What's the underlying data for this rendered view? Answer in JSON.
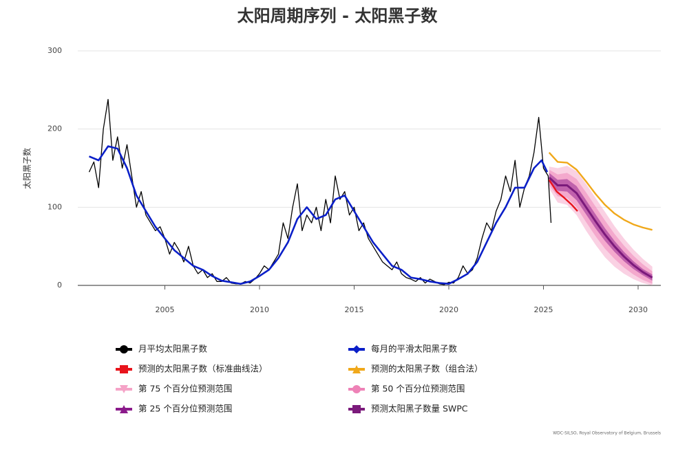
{
  "chart_data": {
    "type": "line",
    "title": "太阳周期序列 - 太阳黑子数",
    "y_label": "太阳黑子数",
    "credit": "WDC-SILSO, Royal Observatory of Belgium, Brussels",
    "xlim": [
      2000.4,
      2031.2
    ],
    "xticks": [
      2005,
      2010,
      2015,
      2020,
      2025,
      2030
    ],
    "ylim": [
      0,
      300
    ],
    "yticks": [
      0,
      100,
      200,
      300
    ],
    "grid": true,
    "series": [
      {
        "name": "月平均太阳黑子数",
        "color": "#000000",
        "kind": "line",
        "width": 1.3,
        "marker": "circle",
        "x": [
          2001.0,
          2001.25,
          2001.5,
          2001.75,
          2002.0,
          2002.25,
          2002.5,
          2002.75,
          2003.0,
          2003.25,
          2003.5,
          2003.75,
          2004.0,
          2004.25,
          2004.5,
          2004.75,
          2005.0,
          2005.25,
          2005.5,
          2005.75,
          2006.0,
          2006.25,
          2006.5,
          2006.75,
          2007.0,
          2007.25,
          2007.5,
          2007.75,
          2008.0,
          2008.25,
          2008.5,
          2008.75,
          2009.0,
          2009.25,
          2009.5,
          2009.75,
          2010.0,
          2010.25,
          2010.5,
          2010.75,
          2011.0,
          2011.25,
          2011.5,
          2011.75,
          2012.0,
          2012.25,
          2012.5,
          2012.75,
          2013.0,
          2013.25,
          2013.5,
          2013.75,
          2014.0,
          2014.25,
          2014.5,
          2014.75,
          2015.0,
          2015.25,
          2015.5,
          2015.75,
          2016.0,
          2016.25,
          2016.5,
          2016.75,
          2017.0,
          2017.25,
          2017.5,
          2017.75,
          2018.0,
          2018.25,
          2018.5,
          2018.75,
          2019.0,
          2019.25,
          2019.5,
          2019.75,
          2020.0,
          2020.25,
          2020.5,
          2020.75,
          2021.0,
          2021.25,
          2021.5,
          2021.75,
          2022.0,
          2022.25,
          2022.5,
          2022.75,
          2023.0,
          2023.25,
          2023.5,
          2023.75,
          2024.0,
          2024.25,
          2024.5,
          2024.75,
          2025.0,
          2025.25,
          2025.4
        ],
        "values": [
          145,
          158,
          125,
          200,
          238,
          160,
          190,
          150,
          180,
          140,
          100,
          120,
          90,
          80,
          70,
          75,
          60,
          40,
          55,
          45,
          30,
          50,
          25,
          15,
          20,
          10,
          15,
          5,
          5,
          10,
          3,
          2,
          2,
          5,
          3,
          8,
          15,
          25,
          20,
          30,
          40,
          80,
          60,
          100,
          130,
          70,
          90,
          80,
          100,
          70,
          110,
          80,
          140,
          110,
          120,
          90,
          100,
          70,
          80,
          60,
          50,
          40,
          30,
          25,
          20,
          30,
          15,
          10,
          8,
          5,
          10,
          3,
          8,
          5,
          2,
          1,
          4,
          3,
          10,
          25,
          15,
          20,
          35,
          60,
          80,
          70,
          95,
          110,
          140,
          120,
          160,
          100,
          125,
          140,
          170,
          215,
          150,
          140,
          80
        ]
      },
      {
        "name": "每月的平滑太阳黑子数",
        "color": "#0a1fc8",
        "kind": "line",
        "width": 2.6,
        "marker": "diamond",
        "x": [
          2001.0,
          2001.5,
          2002.0,
          2002.5,
          2003.0,
          2003.5,
          2004.0,
          2004.5,
          2005.0,
          2005.5,
          2006.0,
          2006.5,
          2007.0,
          2007.5,
          2008.0,
          2008.5,
          2009.0,
          2009.5,
          2010.0,
          2010.5,
          2011.0,
          2011.5,
          2012.0,
          2012.5,
          2013.0,
          2013.5,
          2014.0,
          2014.5,
          2015.0,
          2015.5,
          2016.0,
          2016.5,
          2017.0,
          2017.5,
          2018.0,
          2018.5,
          2019.0,
          2019.5,
          2020.0,
          2020.5,
          2021.0,
          2021.5,
          2022.0,
          2022.5,
          2023.0,
          2023.5,
          2024.0,
          2024.5,
          2024.9,
          2025.2
        ],
        "values": [
          165,
          160,
          178,
          175,
          150,
          115,
          95,
          75,
          60,
          45,
          35,
          25,
          20,
          12,
          6,
          4,
          2,
          5,
          12,
          20,
          35,
          55,
          85,
          100,
          85,
          90,
          110,
          115,
          95,
          75,
          55,
          40,
          25,
          20,
          10,
          8,
          5,
          3,
          2,
          8,
          15,
          30,
          55,
          80,
          100,
          125,
          125,
          150,
          160,
          145
        ]
      },
      {
        "name": "预测的太阳黑子数（标准曲线法）",
        "color": "#e8141c",
        "kind": "line",
        "width": 2.4,
        "marker": "square",
        "x": [
          2025.3,
          2025.7,
          2026.1,
          2026.5,
          2026.8
        ],
        "values": [
          135,
          120,
          112,
          103,
          95
        ]
      },
      {
        "name": "预测的太阳黑子数（组合法）",
        "color": "#f0a81a",
        "kind": "line",
        "width": 2.4,
        "marker": "triangle",
        "x": [
          2025.3,
          2025.75,
          2026.25,
          2026.75,
          2027.25,
          2027.75,
          2028.25,
          2028.75,
          2029.25,
          2029.75,
          2030.25,
          2030.75
        ],
        "values": [
          170,
          158,
          157,
          148,
          133,
          117,
          103,
          92,
          84,
          78,
          74,
          71
        ]
      },
      {
        "name": "第 75 个百分位预测范围",
        "color": "#f5a3c7",
        "kind": "band",
        "marker": "triangle-down",
        "x": [
          2025.3,
          2025.75,
          2026.25,
          2026.75,
          2027.25,
          2027.75,
          2028.25,
          2028.75,
          2029.25,
          2029.75,
          2030.25,
          2030.75
        ],
        "upper": [
          152,
          150,
          153,
          146,
          130,
          112,
          94,
          76,
          60,
          46,
          34,
          24
        ],
        "lower": [
          124,
          106,
          103,
          90,
          70,
          52,
          36,
          24,
          15,
          8,
          3,
          0
        ]
      },
      {
        "name": "第 50 个百分位预测范围",
        "color": "#ee82b7",
        "kind": "band",
        "marker": "circle",
        "x": [
          2025.3,
          2025.75,
          2026.25,
          2026.75,
          2027.25,
          2027.75,
          2028.25,
          2028.75,
          2029.25,
          2029.75,
          2030.25,
          2030.75
        ],
        "upper": [
          148,
          142,
          144,
          136,
          119,
          101,
          83,
          66,
          51,
          38,
          27,
          18
        ],
        "lower": [
          128,
          114,
          112,
          100,
          81,
          63,
          47,
          34,
          23,
          14,
          7,
          2
        ]
      },
      {
        "name": "第 25 个百分位预测范围",
        "color": "#8b1a8b",
        "kind": "band",
        "marker": "triangle",
        "x": [
          2025.3,
          2025.75,
          2026.25,
          2026.75,
          2027.25,
          2027.75,
          2028.25,
          2028.75,
          2029.25,
          2029.75,
          2030.25,
          2030.75
        ],
        "upper": [
          144,
          135,
          136,
          127,
          109,
          91,
          73,
          57,
          43,
          31,
          21,
          14
        ],
        "lower": [
          132,
          121,
          120,
          109,
          91,
          73,
          57,
          43,
          31,
          21,
          13,
          6
        ]
      },
      {
        "name": "预测太阳黑子数量 SWPC",
        "color": "#7b1a7b",
        "kind": "line",
        "width": 3,
        "marker": "square",
        "x": [
          2025.3,
          2025.75,
          2026.25,
          2026.75,
          2027.25,
          2027.75,
          2028.25,
          2028.75,
          2029.25,
          2029.75,
          2030.25,
          2030.75
        ],
        "values": [
          138,
          128,
          128,
          118,
          100,
          82,
          65,
          50,
          37,
          26,
          17,
          10
        ]
      }
    ]
  }
}
